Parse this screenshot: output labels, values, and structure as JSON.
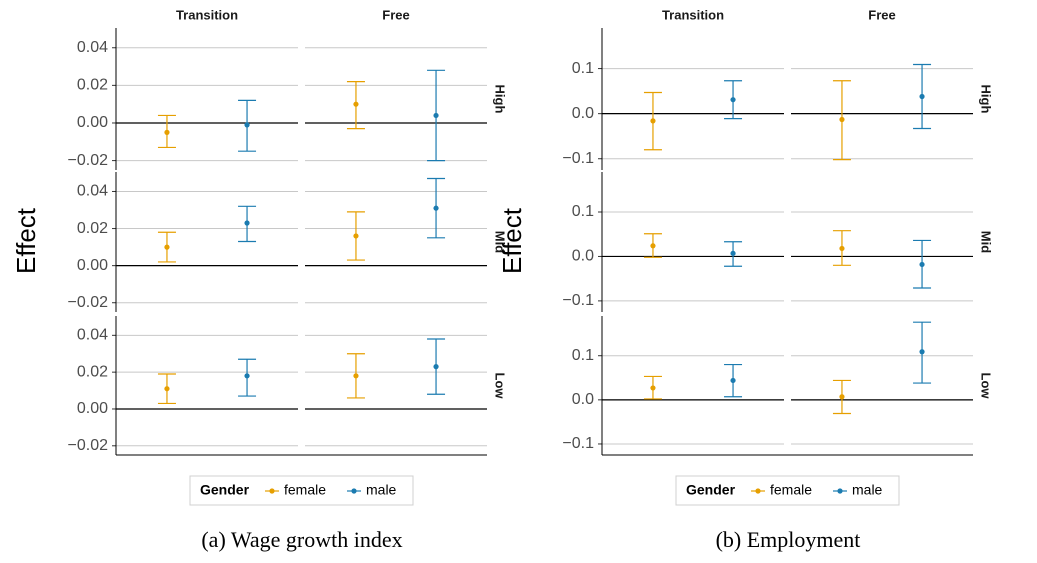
{
  "chart_data": [
    {
      "type": "errorbar",
      "caption": "(a) Wage growth index",
      "ylabel": "Effect",
      "columns": [
        "Transition",
        "Free"
      ],
      "rows": [
        "High",
        "Mid",
        "Low"
      ],
      "legend_title": "Gender",
      "ylim": [
        -0.025,
        0.0505
      ],
      "yticks": [
        {
          "value": -0.02,
          "label": "−0.02"
        },
        {
          "value": 0,
          "label": "0.00"
        },
        0.02,
        0.04
      ],
      "grid": true,
      "series": [
        {
          "name": "female",
          "color": "#e69f00",
          "values": [
            [
              -0.005,
              0.01
            ],
            [
              0.01,
              0.016
            ],
            [
              0.011,
              0.018
            ]
          ],
          "lower": [
            [
              -0.013,
              -0.003
            ],
            [
              0.002,
              0.003
            ],
            [
              0.003,
              0.006
            ]
          ],
          "upper": [
            [
              0.004,
              0.022
            ],
            [
              0.018,
              0.029
            ],
            [
              0.019,
              0.03
            ]
          ]
        },
        {
          "name": "male",
          "color": "#1b7bb0",
          "values": [
            [
              -0.001,
              0.004
            ],
            [
              0.023,
              0.031
            ],
            [
              0.018,
              0.023
            ]
          ],
          "lower": [
            [
              -0.015,
              -0.02
            ],
            [
              0.013,
              0.015
            ],
            [
              0.007,
              0.008
            ]
          ],
          "upper": [
            [
              0.012,
              0.028
            ],
            [
              0.032,
              0.047
            ],
            [
              0.027,
              0.038
            ]
          ]
        }
      ]
    },
    {
      "type": "errorbar",
      "caption": "(b) Employment",
      "ylabel": "Effect",
      "columns": [
        "Transition",
        "Free"
      ],
      "rows": [
        "High",
        "Mid",
        "Low"
      ],
      "legend_title": "Gender",
      "ylim": [
        -0.125,
        0.19
      ],
      "yticks": [
        {
          "value": -0.1,
          "label": "−0.1"
        },
        {
          "value": 0,
          "label": "0.0"
        },
        0.1
      ],
      "grid": true,
      "series": [
        {
          "name": "female",
          "color": "#e69f00",
          "values": [
            [
              -0.016,
              -0.013
            ],
            [
              0.024,
              0.018
            ],
            [
              0.027,
              0.007
            ]
          ],
          "lower": [
            [
              -0.08,
              -0.102
            ],
            [
              -0.002,
              -0.02
            ],
            [
              0.002,
              -0.031
            ]
          ],
          "upper": [
            [
              0.047,
              0.073
            ],
            [
              0.051,
              0.058
            ],
            [
              0.053,
              0.044
            ]
          ]
        },
        {
          "name": "male",
          "color": "#1b7bb0",
          "values": [
            [
              0.031,
              0.038
            ],
            [
              0.007,
              -0.018
            ],
            [
              0.044,
              0.109
            ]
          ],
          "lower": [
            [
              -0.011,
              -0.033
            ],
            [
              -0.022,
              -0.071
            ],
            [
              0.007,
              0.038
            ]
          ],
          "upper": [
            [
              0.073,
              0.109
            ],
            [
              0.033,
              0.036
            ],
            [
              0.08,
              0.176
            ]
          ]
        }
      ]
    }
  ]
}
